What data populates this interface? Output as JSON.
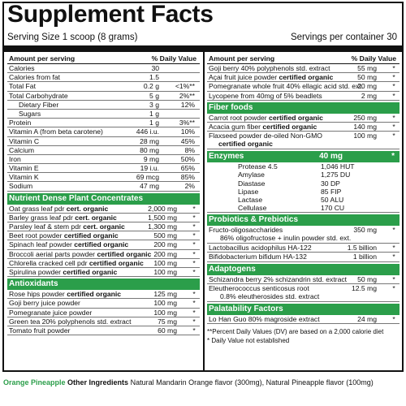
{
  "title": "Supplement Facts",
  "serving_size": "Serving Size 1 scoop (8 grams)",
  "servings_per": "Servings per container 30",
  "left": {
    "header": {
      "name": "Amount per serving",
      "dv": "% Daily Value"
    },
    "basic": [
      {
        "name": "Calories",
        "amt": "30",
        "dv": "",
        "star": ""
      },
      {
        "name": "Calories from fat",
        "amt": "1.5",
        "dv": "",
        "star": ""
      },
      {
        "name": "Total Fat",
        "amt": "0.2 g",
        "dv": "<1%**",
        "star": ""
      },
      {
        "name": "Total Carbohydrate",
        "amt": "5 g",
        "dv": "2%**",
        "star": ""
      },
      {
        "name": "Dietary Fiber",
        "amt": "3 g",
        "dv": "12%",
        "star": "",
        "indent": true
      },
      {
        "name": "Sugars",
        "amt": "1 g",
        "dv": "",
        "star": "",
        "indent": true
      },
      {
        "name": "Protein",
        "amt": "1 g",
        "dv": "3%**",
        "star": ""
      },
      {
        "name": "Vitamin A (from beta carotene)",
        "amt": "446 i.u.",
        "dv": "10%",
        "star": ""
      },
      {
        "name": "Vitamin C",
        "amt": "28 mg",
        "dv": "45%",
        "star": ""
      },
      {
        "name": "Calcium",
        "amt": "80 mg",
        "dv": "8%",
        "star": ""
      },
      {
        "name": "Iron",
        "amt": "9 mg",
        "dv": "50%",
        "star": ""
      },
      {
        "name": "Vitamin E",
        "amt": "19 i.u.",
        "dv": "65%",
        "star": ""
      },
      {
        "name": "Vitamin K",
        "amt": "69 mcg",
        "dv": "85%",
        "star": ""
      },
      {
        "name": "Sodium",
        "amt": "47 mg",
        "dv": "2%",
        "star": ""
      }
    ],
    "concentrates_title": "Nutrient Dense Plant Concentrates",
    "concentrates": [
      {
        "name": "Oat grass leaf pdr ",
        "bold": "cert. organic",
        "amt": "2,000 mg",
        "star": "*"
      },
      {
        "name": "Barley grass leaf pdr ",
        "bold": "cert. organic",
        "amt": "1,500 mg",
        "star": "*"
      },
      {
        "name": "Parsley leaf & stem pdr ",
        "bold": "cert. organic",
        "amt": "1,300 mg",
        "star": "*"
      },
      {
        "name": "Beet root powder ",
        "bold": "certified organic",
        "amt": "500 mg",
        "star": "*"
      },
      {
        "name": "Spinach leaf powder ",
        "bold": "certified organic",
        "amt": "200 mg",
        "star": "*"
      },
      {
        "name": "Broccoli aerial parts powder ",
        "bold": "certified organic",
        "amt": "200 mg",
        "star": "*"
      },
      {
        "name": "Chlorella cracked cell pdr ",
        "bold": "certified organic",
        "amt": "100 mg",
        "star": "*"
      },
      {
        "name": "Spirulina powder ",
        "bold": "certified organic",
        "amt": "100 mg",
        "star": "*"
      }
    ],
    "antioxidants_title": "Antioxidants",
    "antioxidants": [
      {
        "name": "Rose hips powder ",
        "bold": "certified organic",
        "amt": "125 mg",
        "star": "*"
      },
      {
        "name": "Goji berry juice powder",
        "bold": "",
        "amt": "100 mg",
        "star": "*"
      },
      {
        "name": "Pomegranate juice powder",
        "bold": "",
        "amt": "100 mg",
        "star": "*"
      },
      {
        "name": "Green tea 20% polyphenols std. extract",
        "bold": "",
        "amt": "75 mg",
        "star": "*"
      },
      {
        "name": "Tomato fruit powder",
        "bold": "",
        "amt": "60 mg",
        "star": "*"
      }
    ]
  },
  "right": {
    "header": {
      "name": "Amount per serving",
      "dv": "% Daily Value"
    },
    "top": [
      {
        "name": "Goji berry 40% polyphenols std. extract",
        "bold": "",
        "amt": "55 mg",
        "star": "*"
      },
      {
        "name": "Açai fruit juice powder ",
        "bold": "certified organic",
        "amt": "50 mg",
        "star": "*"
      },
      {
        "name": "Pomegranate whole fruit 40% ellagic acid std. ext.",
        "bold": "",
        "amt": "20 mg",
        "star": "*"
      },
      {
        "name": "Lycopene from 40mg of 5% beadlets",
        "bold": "",
        "amt": "2 mg",
        "star": "*"
      }
    ],
    "fiber_title": "Fiber foods",
    "fiber": [
      {
        "name": "Carrot root powder ",
        "bold": "certified organic",
        "amt": "250 mg",
        "star": "*"
      },
      {
        "name": "Acacia gum fiber ",
        "bold": "certified organic",
        "amt": "140 mg",
        "star": "*"
      },
      {
        "name": "Flaxseed powder de-oiled Non-GMO",
        "line2": "certified organic",
        "amt": "100 mg",
        "star": "*"
      }
    ],
    "enzymes_title": "Enzymes",
    "enzymes_amt": "40 mg",
    "enzymes_star": "*",
    "enzymes": [
      {
        "name": "Protease 4.5",
        "val": "1,046 HUT"
      },
      {
        "name": "Amylase",
        "val": "1,275 DU"
      },
      {
        "name": "Diastase",
        "val": "30 DP"
      },
      {
        "name": "Lipase",
        "val": "85 FIP"
      },
      {
        "name": "Lactase",
        "val": "50 ALU"
      },
      {
        "name": "Cellulase",
        "val": "170 CU"
      }
    ],
    "probiotics_title": "Probiotics & Prebiotics",
    "probiotics_foss": {
      "name": "Fructo-oligosaccharides",
      "amt": "350 mg",
      "star": "*",
      "sub": "86% oligofructose + inulin powder std. ext."
    },
    "probiotics": [
      {
        "name": "Lactobacillus acidophilus HA-122",
        "amt": "1.5 billion",
        "star": "*"
      },
      {
        "name": "Bifidobacterium bifidum HA-132",
        "amt": "1 billion",
        "star": "*"
      }
    ],
    "adaptogens_title": "Adaptogens",
    "adaptogens": [
      {
        "name": "Schizandra berry 2% schizandrin std. extract",
        "amt": "50 mg",
        "star": "*"
      }
    ],
    "eleuthero": {
      "name": "Eleutherococcus senticosus root",
      "amt": "12.5 mg",
      "star": "*",
      "sub": "0.8% eleutherosides std. extract"
    },
    "palatability_title": "Palatability Factors",
    "palatability": [
      {
        "name": "Lo Han Guo 80% magroside extract",
        "amt": "24 mg",
        "star": "*"
      }
    ],
    "footnote1": "**Percent Daily Values (DV) are based on a 2,000 calorie diet",
    "footnote2": "* Daily Value not established"
  },
  "bottom": {
    "flavor": "Orange Pineapple",
    "label": "Other Ingredients",
    "text": "Natural Mandarin Orange flavor (300mg), Natural Pineapple flavor (100mg)"
  },
  "colors": {
    "section_green": "#2b9e4a"
  }
}
